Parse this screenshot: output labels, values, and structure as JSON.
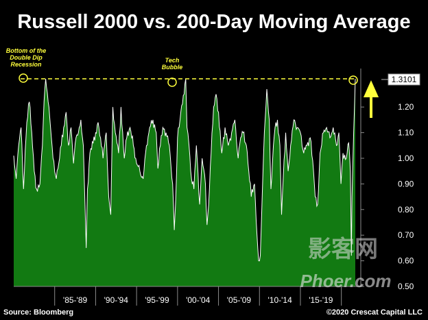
{
  "title": "Russell 2000 vs. 200-Day Moving Average",
  "source": "Source: Bloomberg",
  "copyright": "©2020 Crescat Capital LLC",
  "annotations": {
    "recession": "Bottom of the Double Dip Recession",
    "tech": "Tech Bubble"
  },
  "watermark": {
    "top": "影客网",
    "bottom": "Phoer.com"
  },
  "colors": {
    "fill": "#127a12",
    "line": "#ffffff",
    "accent": "#ffff3c",
    "background": "#000000",
    "grid": "#8c8c8c"
  },
  "chart_data": {
    "type": "area",
    "ylim": [
      0.5,
      1.3101
    ],
    "ytick_values": [
      0.5,
      0.6,
      0.7,
      0.8,
      0.9,
      1.0,
      1.1,
      1.2
    ],
    "ytick_labels": [
      "0.50",
      "0.60",
      "0.70",
      "0.80",
      "0.90",
      "1.00",
      "1.10",
      "1.20"
    ],
    "current_value_label": "1.3101",
    "current_value": 1.3101,
    "reference_line": 1.3101,
    "xlim": [
      1979.0,
      2020.7
    ],
    "period_labels": [
      "'85-'89",
      "'90-'94",
      "'95-'99",
      "'00-'04",
      "'05-'09",
      "'10-'14",
      "'15-'19"
    ],
    "period_bounds": [
      1984,
      1989,
      1994,
      1999,
      2004,
      2009,
      2014,
      2019
    ],
    "x": [
      1979.0,
      1979.3,
      1979.6,
      1979.9,
      1980.2,
      1980.4,
      1980.6,
      1980.9,
      1981.2,
      1981.5,
      1981.8,
      1982.2,
      1982.5,
      1982.7,
      1982.9,
      1983.2,
      1983.5,
      1983.8,
      1984.2,
      1984.5,
      1984.8,
      1985.1,
      1985.4,
      1985.7,
      1986.0,
      1986.3,
      1986.6,
      1986.9,
      1987.2,
      1987.5,
      1987.7,
      1987.85,
      1988.0,
      1988.3,
      1988.7,
      1989.0,
      1989.3,
      1989.6,
      1989.9,
      1990.3,
      1990.6,
      1990.85,
      1991.1,
      1991.4,
      1991.8,
      1992.1,
      1992.5,
      1992.8,
      1993.2,
      1993.6,
      1994.0,
      1994.4,
      1994.8,
      1995.2,
      1995.6,
      1996.0,
      1996.4,
      1996.6,
      1996.9,
      1997.2,
      1997.6,
      1998.0,
      1998.4,
      1998.6,
      1998.75,
      1999.0,
      1999.4,
      1999.8,
      2000.0,
      2000.15,
      2000.4,
      2000.7,
      2001.0,
      2001.3,
      2001.7,
      2002.0,
      2002.4,
      2002.6,
      2002.8,
      2003.1,
      2003.4,
      2003.7,
      2004.0,
      2004.4,
      2004.8,
      2005.2,
      2005.6,
      2006.0,
      2006.4,
      2006.7,
      2007.0,
      2007.4,
      2007.7,
      2008.0,
      2008.4,
      2008.7,
      2008.9,
      2009.1,
      2009.3,
      2009.6,
      2009.9,
      2010.2,
      2010.4,
      2010.7,
      2010.9,
      2011.2,
      2011.5,
      2011.7,
      2011.9,
      2012.2,
      2012.5,
      2012.8,
      2013.2,
      2013.6,
      2014.0,
      2014.4,
      2014.8,
      2015.2,
      2015.6,
      2015.8,
      2016.1,
      2016.4,
      2016.8,
      2017.2,
      2017.6,
      2018.0,
      2018.4,
      2018.7,
      2018.95,
      2019.2,
      2019.6,
      2019.9,
      2020.1,
      2020.22,
      2020.3,
      2020.5,
      2020.7
    ],
    "y": [
      1.01,
      0.92,
      1.05,
      1.12,
      0.88,
      1.03,
      1.14,
      1.22,
      1.1,
      0.95,
      0.88,
      0.9,
      1.05,
      1.22,
      1.31,
      1.22,
      1.12,
      1.0,
      0.92,
      0.98,
      1.05,
      1.12,
      1.18,
      1.05,
      1.12,
      0.98,
      1.08,
      1.1,
      1.15,
      1.05,
      0.82,
      0.65,
      0.88,
      1.02,
      1.06,
      1.1,
      1.14,
      1.08,
      1.0,
      1.1,
      0.85,
      0.78,
      1.2,
      1.1,
      1.02,
      1.2,
      1.0,
      1.08,
      1.12,
      1.05,
      0.98,
      0.95,
      0.92,
      1.05,
      1.12,
      1.15,
      1.1,
      0.96,
      1.05,
      1.12,
      1.1,
      1.05,
      0.9,
      0.72,
      0.82,
      1.08,
      1.18,
      1.25,
      1.31,
      1.12,
      1.05,
      0.92,
      0.88,
      1.05,
      0.82,
      1.0,
      0.9,
      0.74,
      0.82,
      1.02,
      1.2,
      1.25,
      1.18,
      1.02,
      1.12,
      1.05,
      1.1,
      1.15,
      1.0,
      1.08,
      1.1,
      1.05,
      0.95,
      0.85,
      0.9,
      0.7,
      0.6,
      0.62,
      0.82,
      1.1,
      1.27,
      1.15,
      0.88,
      1.05,
      1.12,
      1.15,
      1.05,
      0.78,
      0.92,
      1.1,
      0.95,
      1.05,
      1.15,
      1.12,
      1.1,
      1.02,
      1.05,
      1.08,
      0.95,
      0.85,
      0.82,
      1.02,
      1.1,
      1.12,
      1.08,
      1.12,
      1.05,
      1.1,
      0.9,
      1.02,
      1.0,
      1.06,
      0.95,
      0.62,
      0.85,
      1.1,
      1.3101
    ]
  }
}
